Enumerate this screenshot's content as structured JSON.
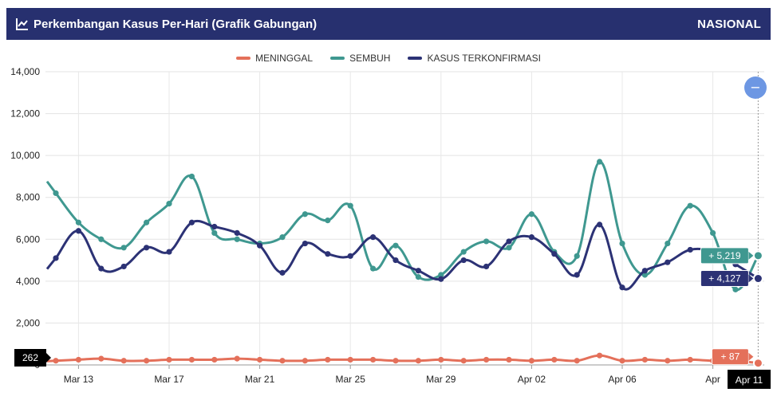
{
  "header": {
    "title": "Perkembangan Kasus Per-Hari (Grafik Gabungan)",
    "scope": "NASIONAL"
  },
  "colors": {
    "header_bg": "#27306f",
    "meninggal": "#e4705a",
    "sembuh": "#3f9890",
    "terkonfirmasi": "#2c3275",
    "zoom_button": "#6d97e3"
  },
  "chart_data": {
    "type": "line",
    "ylim": [
      0,
      14000
    ],
    "y_ticks": [
      "0",
      "2,000",
      "4,000",
      "6,000",
      "8,000",
      "10,000",
      "12,000",
      "14,000"
    ],
    "x_tick_labels": [
      "Mar 13",
      "Mar 17",
      "Mar 21",
      "Mar 25",
      "Mar 29",
      "Apr 02",
      "Apr 06",
      "Apr"
    ],
    "grid": true,
    "legend_position": "top-center",
    "series": [
      {
        "name": "MENINGGAL",
        "color": "#e4705a",
        "values": [
          200,
          250,
          300,
          200,
          200,
          250,
          250,
          250,
          300,
          250,
          200,
          200,
          250,
          250,
          250,
          200,
          200,
          250,
          200,
          250,
          250,
          200,
          250,
          200,
          450,
          200,
          250,
          200,
          250,
          200,
          200,
          87
        ]
      },
      {
        "name": "SEMBUH",
        "color": "#3f9890",
        "values": [
          8200,
          6800,
          6000,
          5600,
          6800,
          7700,
          9000,
          6300,
          6000,
          5800,
          6100,
          7200,
          6900,
          7600,
          4600,
          5700,
          4200,
          4300,
          5400,
          5900,
          5600,
          7200,
          5400,
          5200,
          9700,
          5800,
          4300,
          5800,
          7600,
          6300,
          3600,
          5219
        ]
      },
      {
        "name": "KASUS TERKONFIRMASI",
        "color": "#2c3275",
        "values": [
          5100,
          6400,
          4600,
          4700,
          5600,
          5400,
          6800,
          6600,
          6300,
          5700,
          4400,
          5800,
          5300,
          5200,
          6100,
          5000,
          4500,
          4100,
          5000,
          4700,
          5900,
          6100,
          5300,
          4300,
          6700,
          3700,
          4500,
          4900,
          5500,
          5400,
          4800,
          4127
        ]
      }
    ],
    "tooltips": {
      "meninggal": "+ 87",
      "sembuh": "+ 5,219",
      "terkonfirmasi": "+ 4,127"
    },
    "crosshair": {
      "x_label": "Apr 11",
      "y_label": "262"
    }
  },
  "zoom_button_label": "−"
}
